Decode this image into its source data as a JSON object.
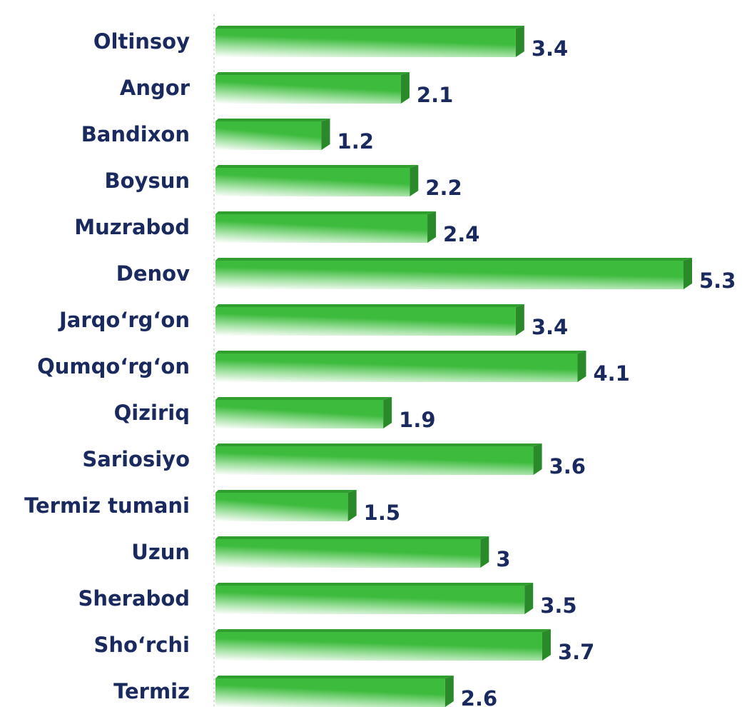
{
  "chart_data": {
    "type": "bar",
    "orientation": "horizontal",
    "categories": [
      "Oltinsoy",
      "Angor",
      "Bandixon",
      "Boysun",
      "Muzrabod",
      "Denov",
      "Jarqo‘rg‘on",
      "Qumqo‘rg‘on",
      "Qiziriq",
      "Sariosiyo",
      "Termiz tumani",
      "Uzun",
      "Sherabod",
      "Sho‘rchi",
      "Termiz"
    ],
    "values": [
      3.4,
      2.1,
      1.2,
      2.2,
      2.4,
      5.3,
      3.4,
      4.1,
      1.9,
      3.6,
      1.5,
      3,
      3.5,
      3.7,
      2.6
    ],
    "color": "#3dbb3d"
  }
}
